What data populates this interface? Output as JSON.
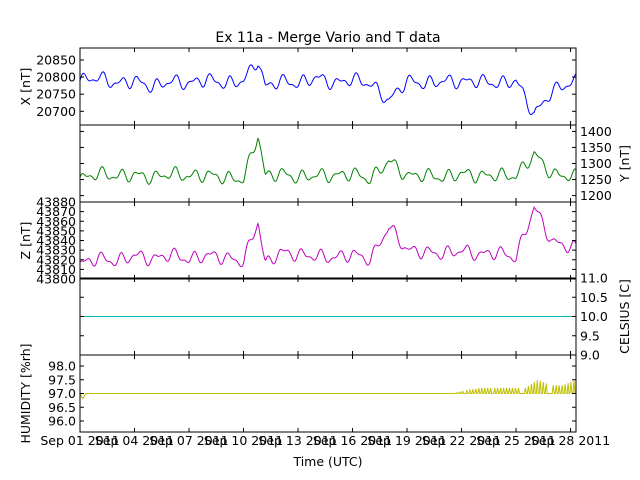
{
  "chart_data": {
    "type": "line",
    "title": "Ex 11a - Merge Vario and T data",
    "xlabel": "Time (UTC)",
    "x_ticks": [
      "Sep 01 2011",
      "Sep 04 2011",
      "Sep 07 2011",
      "Sep 10 2011",
      "Sep 13 2011",
      "Sep 16 2011",
      "Sep 19 2011",
      "Sep 22 2011",
      "Sep 25 2011",
      "Sep 28 2011"
    ],
    "x_range_days": [
      0,
      27.3
    ],
    "panels": [
      {
        "name": "X",
        "ylabel": "X [nT]",
        "axis_side": "left",
        "color": "#0000ff",
        "ylim": [
          20660,
          20885
        ],
        "yticks": [
          20700,
          20750,
          20800,
          20850
        ],
        "baseline": 20795,
        "x": [
          0,
          1,
          2,
          3,
          4,
          5,
          6,
          7,
          8,
          9,
          9.8,
          10.2,
          11,
          12,
          13,
          14,
          15,
          16,
          17,
          18,
          19,
          20,
          21,
          22,
          23,
          24,
          25,
          26,
          27.3
        ],
        "values": [
          20790,
          20800,
          20780,
          20790,
          20770,
          20790,
          20780,
          20795,
          20780,
          20790,
          20850,
          20770,
          20790,
          20780,
          20800,
          20780,
          20795,
          20780,
          20730,
          20790,
          20780,
          20790,
          20785,
          20790,
          20780,
          20790,
          20690,
          20760,
          20790
        ]
      },
      {
        "name": "Y",
        "ylabel": "Y [nT]",
        "axis_side": "right",
        "color": "#008000",
        "ylim": [
          1180,
          1420
        ],
        "yticks": [
          1200,
          1250,
          1300,
          1350,
          1400
        ],
        "baseline": 1260,
        "x": [
          0,
          1,
          2,
          3,
          4,
          5,
          6,
          7,
          8,
          9,
          9.8,
          10.2,
          11,
          12,
          13,
          14,
          15,
          16,
          17,
          18,
          19,
          20,
          21,
          22,
          23,
          24,
          25,
          26,
          27.3
        ],
        "values": [
          1250,
          1270,
          1260,
          1265,
          1255,
          1270,
          1260,
          1265,
          1255,
          1250,
          1390,
          1260,
          1270,
          1255,
          1265,
          1260,
          1270,
          1250,
          1310,
          1260,
          1265,
          1255,
          1270,
          1260,
          1265,
          1260,
          1330,
          1265,
          1260
        ]
      },
      {
        "name": "Z",
        "ylabel": "Z [nT]",
        "axis_side": "left",
        "color": "#bf00bf",
        "ylim": [
          43800,
          43880
        ],
        "yticks": [
          43800,
          43810,
          43820,
          43830,
          43840,
          43850,
          43860,
          43870,
          43880
        ],
        "baseline": 43825,
        "x": [
          0,
          1,
          2,
          3,
          4,
          5,
          6,
          7,
          8,
          9,
          9.8,
          10.2,
          11,
          12,
          13,
          14,
          15,
          16,
          17,
          18,
          19,
          20,
          21,
          22,
          23,
          24,
          25,
          26,
          27.3
        ],
        "values": [
          43815,
          43822,
          43818,
          43825,
          43820,
          43826,
          43820,
          43825,
          43822,
          43818,
          43860,
          43815,
          43828,
          43825,
          43824,
          43822,
          43826,
          43820,
          43855,
          43830,
          43828,
          43826,
          43830,
          43825,
          43828,
          43822,
          43875,
          43838,
          43832
        ]
      },
      {
        "name": "CELSIUS",
        "ylabel": "CELSIUS [C]",
        "axis_side": "right",
        "color": "#00bfbf",
        "ylim": [
          9.0,
          11.0
        ],
        "yticks": [
          9.0,
          9.5,
          10.0,
          10.5,
          11.0
        ],
        "x": [
          0,
          27.3
        ],
        "values": [
          10.0,
          10.0
        ]
      },
      {
        "name": "HUMIDITY",
        "ylabel": "HUMIDITY [%rh]",
        "axis_side": "left",
        "color": "#bfbf00",
        "ylim": [
          95.6,
          98.4
        ],
        "yticks": [
          96.0,
          96.5,
          97.0,
          97.5,
          98.0
        ],
        "x": [
          0,
          0.15,
          0.3,
          20.5,
          22.0,
          23.5,
          24.5,
          25.2,
          25.9,
          26.6,
          27.3
        ],
        "values": [
          97.0,
          96.8,
          97.0,
          97.0,
          97.2,
          97.2,
          97.2,
          97.5,
          97.3,
          97.3,
          97.5
        ]
      }
    ]
  }
}
